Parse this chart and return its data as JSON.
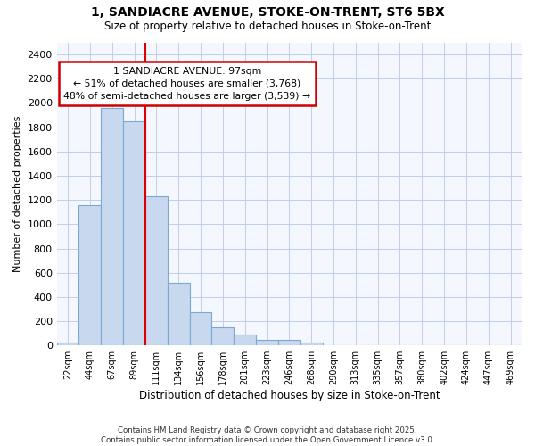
{
  "title_line1": "1, SANDIACRE AVENUE, STOKE-ON-TRENT, ST6 5BX",
  "title_line2": "Size of property relative to detached houses in Stoke-on-Trent",
  "xlabel": "Distribution of detached houses by size in Stoke-on-Trent",
  "ylabel": "Number of detached properties",
  "bin_labels": [
    "22sqm",
    "44sqm",
    "67sqm",
    "89sqm",
    "111sqm",
    "134sqm",
    "156sqm",
    "178sqm",
    "201sqm",
    "223sqm",
    "246sqm",
    "268sqm",
    "290sqm",
    "313sqm",
    "335sqm",
    "357sqm",
    "380sqm",
    "402sqm",
    "424sqm",
    "447sqm",
    "469sqm"
  ],
  "bin_values": [
    25,
    1160,
    1960,
    1850,
    1230,
    520,
    275,
    150,
    90,
    45,
    45,
    20,
    5,
    5,
    5,
    5,
    2,
    2,
    2,
    2,
    2
  ],
  "bar_color": "#c8d8ef",
  "bar_edge_color": "#7aaad4",
  "grid_color": "#c0cfe8",
  "background_color": "#f4f7fd",
  "vline_x_idx": 3,
  "vline_color": "#dd0000",
  "annotation_text": "1 SANDIACRE AVENUE: 97sqm\n← 51% of detached houses are smaller (3,768)\n48% of semi-detached houses are larger (3,539) →",
  "annotation_box_color": "#cc0000",
  "annotation_bg": "#ffffff",
  "ylim": [
    0,
    2500
  ],
  "yticks": [
    0,
    200,
    400,
    600,
    800,
    1000,
    1200,
    1400,
    1600,
    1800,
    2000,
    2200,
    2400
  ],
  "footer_line1": "Contains HM Land Registry data © Crown copyright and database right 2025.",
  "footer_line2": "Contains public sector information licensed under the Open Government Licence v3.0."
}
